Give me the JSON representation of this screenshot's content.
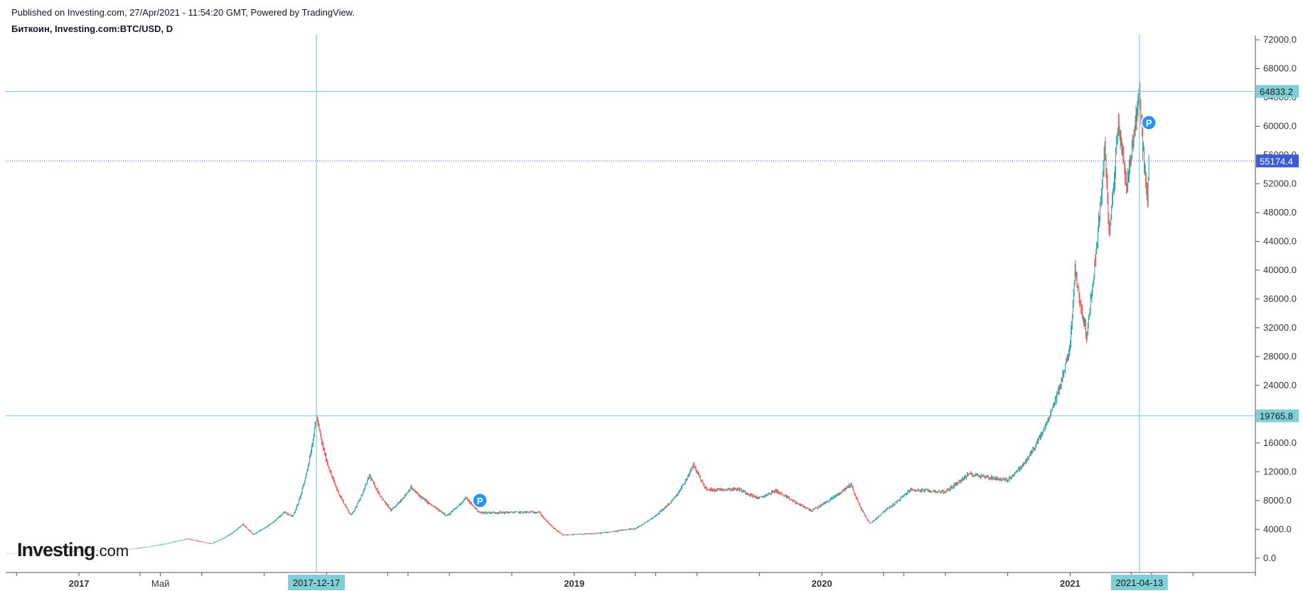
{
  "header": {
    "published": "Published on Investing.com, 27/Apr/2021 - 11:54:20 GMT, Powered by TradingView.",
    "symbol": "Биткоин, Investing.com:BTC/USD, D"
  },
  "logo": {
    "main": "Investing",
    "suffix": ".com"
  },
  "colors": {
    "up": "#26a69a",
    "down": "#ef5350",
    "line": "#7ecfd9",
    "label_bg": "#7fcfd9",
    "last_price_bg": "#3d5ad8",
    "axis": "#555555",
    "marker": "#2196f3"
  },
  "chart_data": {
    "type": "candlestick",
    "x_range": [
      "2016-09-15",
      "2021-10-01"
    ],
    "ylim": [
      -2000,
      72000
    ],
    "y_ticks": [
      0,
      4000,
      8000,
      12000,
      16000,
      20000,
      24000,
      28000,
      32000,
      36000,
      40000,
      44000,
      48000,
      52000,
      56000,
      60000,
      64000,
      68000,
      72000
    ],
    "y_tick_labels": [
      "0.0",
      "4000.0",
      "8000.0",
      "12000.0",
      "16000.0",
      "20000.0",
      "24000.0",
      "28000.0",
      "32000.0",
      "36000.0",
      "40000.0",
      "44000.0",
      "48000.0",
      "52000.0",
      "56000.0",
      "60000.0",
      "64000.0",
      "68000.0",
      "72000.0"
    ],
    "x_labels": [
      {
        "date": "2017-01-01",
        "text": "2017",
        "bold": true
      },
      {
        "date": "2017-05-01",
        "text": "Май",
        "bold": false
      },
      {
        "date": "2019-01-01",
        "text": "2019",
        "bold": true
      },
      {
        "date": "2020-01-01",
        "text": "2020",
        "bold": true
      },
      {
        "date": "2021-01-01",
        "text": "2021",
        "bold": true
      }
    ],
    "price_path": [
      [
        "2016-09-15",
        600
      ],
      [
        "2016-12-31",
        960
      ],
      [
        "2017-03-15",
        1200
      ],
      [
        "2017-06-10",
        2700
      ],
      [
        "2017-07-15",
        2000
      ],
      [
        "2017-08-31",
        4700
      ],
      [
        "2017-09-15",
        3300
      ],
      [
        "2017-10-31",
        6400
      ],
      [
        "2017-11-12",
        5800
      ],
      [
        "2017-12-17",
        19765
      ],
      [
        "2017-12-31",
        13800
      ],
      [
        "2018-02-06",
        6000
      ],
      [
        "2018-03-05",
        11500
      ],
      [
        "2018-04-06",
        6600
      ],
      [
        "2018-05-05",
        9800
      ],
      [
        "2018-06-28",
        5900
      ],
      [
        "2018-07-25",
        8400
      ],
      [
        "2018-08-15",
        6300
      ],
      [
        "2018-11-10",
        6400
      ],
      [
        "2018-12-15",
        3200
      ],
      [
        "2019-01-31",
        3400
      ],
      [
        "2019-04-01",
        4100
      ],
      [
        "2019-05-31",
        8600
      ],
      [
        "2019-06-26",
        13000
      ],
      [
        "2019-07-15",
        9500
      ],
      [
        "2019-08-31",
        9600
      ],
      [
        "2019-09-30",
        8300
      ],
      [
        "2019-10-25",
        9400
      ],
      [
        "2019-12-17",
        6600
      ],
      [
        "2020-02-13",
        10300
      ],
      [
        "2020-03-12",
        4800
      ],
      [
        "2020-03-31",
        6400
      ],
      [
        "2020-05-10",
        9500
      ],
      [
        "2020-06-30",
        9200
      ],
      [
        "2020-08-05",
        11700
      ],
      [
        "2020-09-30",
        10800
      ],
      [
        "2020-10-25",
        13100
      ],
      [
        "2020-11-30",
        19200
      ],
      [
        "2020-12-31",
        29000
      ],
      [
        "2021-01-08",
        40000
      ],
      [
        "2021-01-25",
        31000
      ],
      [
        "2021-02-21",
        57000
      ],
      [
        "2021-02-28",
        45000
      ],
      [
        "2021-03-13",
        61000
      ],
      [
        "2021-03-25",
        52000
      ],
      [
        "2021-04-13",
        64833
      ],
      [
        "2021-04-25",
        49000
      ],
      [
        "2021-04-27",
        55174
      ]
    ],
    "horizontal_lines": [
      {
        "value": 64833.2,
        "label": "64833.2"
      },
      {
        "value": 19765.8,
        "label": "19765.8"
      }
    ],
    "last_price": {
      "value": 55174.4,
      "label": "55174.4"
    },
    "vertical_lines": [
      {
        "date": "2017-12-17",
        "label": "2017-12-17"
      },
      {
        "date": "2021-04-13",
        "label": "2021-04-13"
      }
    ],
    "markers": [
      {
        "date": "2018-08-15",
        "value": 8000,
        "text": "P"
      },
      {
        "date": "2021-04-27",
        "value": 60500,
        "text": "P"
      }
    ]
  }
}
